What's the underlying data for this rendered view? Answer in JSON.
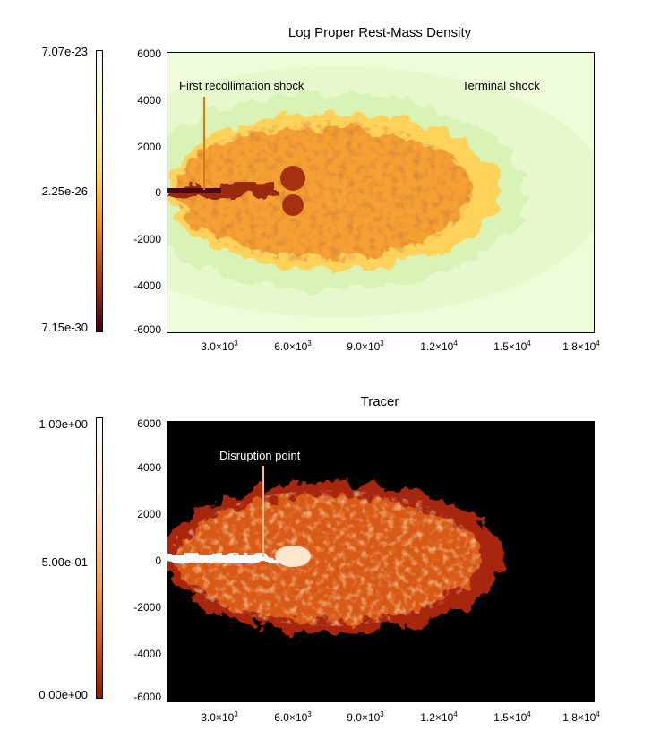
{
  "panels": [
    {
      "title": "Log Proper Rest-Mass Density",
      "colorbar": {
        "max": "7.07e-23",
        "mid": "2.25e-26",
        "min": "7.15e-30",
        "colors": [
          "#ffffff",
          "#f0ffdc",
          "#ffd45a",
          "#f09020",
          "#b43c10",
          "#400018"
        ]
      },
      "yticks": [
        "6000",
        "4000",
        "2000",
        "0",
        "-2000",
        "-4000",
        "-6000"
      ],
      "xticks": [
        {
          "mant": "3.0×10",
          "exp": "3"
        },
        {
          "mant": "6.0×10",
          "exp": "3"
        },
        {
          "mant": "9.0×10",
          "exp": "3"
        },
        {
          "mant": "1.2×10",
          "exp": "4"
        },
        {
          "mant": "1.5×10",
          "exp": "4"
        },
        {
          "mant": "1.8×10",
          "exp": "4"
        }
      ],
      "annotations": [
        "First recollimation shock",
        "Terminal shock"
      ],
      "background": "#eefcda"
    },
    {
      "title": "Tracer",
      "colorbar": {
        "max": "1.00e+00",
        "mid": "5.00e-01",
        "min": "0.00e+00",
        "colors": [
          "#ffffff",
          "#ffd8b0",
          "#f59a40",
          "#d05010",
          "#8a1a00"
        ]
      },
      "yticks": [
        "6000",
        "4000",
        "2000",
        "0",
        "-2000",
        "-4000",
        "-6000"
      ],
      "xticks": [
        {
          "mant": "3.0×10",
          "exp": "3"
        },
        {
          "mant": "6.0×10",
          "exp": "3"
        },
        {
          "mant": "9.0×10",
          "exp": "3"
        },
        {
          "mant": "1.2×10",
          "exp": "4"
        },
        {
          "mant": "1.5×10",
          "exp": "4"
        },
        {
          "mant": "1.8×10",
          "exp": "4"
        }
      ],
      "annotations": [
        "Disruption point"
      ],
      "background": "#000000"
    }
  ]
}
